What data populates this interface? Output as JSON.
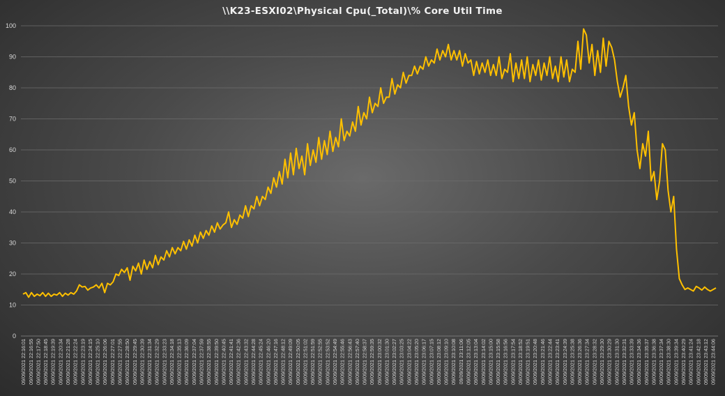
{
  "chart_data": {
    "type": "line",
    "title": "\\\\K23-ESXI02\\Physical Cpu(_Total)\\% Core Util Time",
    "ylim": [
      0,
      100
    ],
    "yticks": [
      0,
      10,
      20,
      30,
      40,
      50,
      60,
      70,
      80,
      90,
      100
    ],
    "grid": true,
    "legend": "none",
    "line_color": "#ffc000",
    "x_tick_labels": [
      "09/09/2021 22:16:01",
      "09/09/2021 22:16:55",
      "09/09/2021 22:17:50",
      "09/09/2021 22:18:45",
      "09/09/2021 22:19:39",
      "09/09/2021 22:20:34",
      "09/09/2021 22:21:28",
      "09/09/2021 22:22:24",
      "09/09/2021 22:23:19",
      "09/09/2021 22:24:15",
      "09/09/2021 22:25:10",
      "09/09/2021 22:26:06",
      "09/09/2021 22:27:01",
      "09/09/2021 22:27:55",
      "09/09/2021 22:28:50",
      "09/09/2021 22:29:45",
      "09/09/2021 22:30:39",
      "09/09/2021 22:31:34",
      "09/09/2021 22:32:29",
      "09/09/2021 22:33:23",
      "09/09/2021 22:34:18",
      "09/09/2021 22:35:13",
      "09/09/2021 22:36:09",
      "09/09/2021 22:37:04",
      "09/09/2021 22:37:59",
      "09/09/2021 22:38:55",
      "09/09/2021 22:39:50",
      "09/09/2021 22:40:45",
      "09/09/2021 22:41:41",
      "09/09/2021 22:42:36",
      "09/09/2021 22:43:32",
      "09/09/2021 22:44:28",
      "09/09/2021 22:45:24",
      "09/09/2021 22:46:20",
      "09/09/2021 22:47:16",
      "09/09/2021 22:48:12",
      "09/09/2021 22:49:09",
      "09/09/2021 22:50:05",
      "09/09/2021 22:51:02",
      "09/09/2021 22:51:59",
      "09/09/2021 22:52:55",
      "09/09/2021 22:53:52",
      "09/09/2021 22:54:49",
      "09/09/2021 22:55:46",
      "09/09/2021 22:56:43",
      "09/09/2021 22:57:40",
      "09/09/2021 22:58:37",
      "09/09/2021 22:59:35",
      "09/09/2021 23:00:32",
      "09/09/2021 23:01:30",
      "09/09/2021 23:02:27",
      "09/09/2021 23:03:25",
      "09/09/2021 23:04:22",
      "09/09/2021 23:05:20",
      "09/09/2021 23:06:17",
      "09/09/2021 23:07:15",
      "09/09/2021 23:08:12",
      "09/09/2021 23:09:10",
      "09/09/2021 23:10:08",
      "09/09/2021 23:11:06",
      "09/09/2021 23:12:05",
      "09/09/2021 23:13:04",
      "09/09/2021 23:14:02",
      "09/09/2021 23:15:00",
      "09/09/2021 23:15:58",
      "09/09/2021 23:16:56",
      "09/09/2021 23:17:54",
      "09/09/2021 23:18:52",
      "09/09/2021 23:19:51",
      "09/09/2021 23:20:48",
      "09/09/2021 23:21:46",
      "09/09/2021 23:22:44",
      "09/09/2021 23:23:41",
      "09/09/2021 23:24:39",
      "09/09/2021 23:25:38",
      "09/09/2021 23:26:36",
      "09/09/2021 23:27:34",
      "09/09/2021 23:28:32",
      "09/09/2021 23:29:30",
      "09/09/2021 23:30:29",
      "09/09/2021 23:31:30",
      "09/09/2021 23:32:31",
      "09/09/2021 23:33:39",
      "09/09/2021 23:34:36",
      "09/09/2021 23:35:37",
      "09/09/2021 23:36:38",
      "09/09/2021 23:37:34",
      "09/09/2021 23:38:30",
      "09/09/2021 23:39:34",
      "09/09/2021 23:40:29",
      "09/09/2021 23:41:24",
      "09/09/2021 23:42:18",
      "09/09/2021 23:43:12",
      "09/09/2021 23:44:06"
    ],
    "series": [
      {
        "values": [
          13.5,
          14,
          12.5,
          14,
          12.8,
          13.5,
          13,
          14,
          12.8,
          13.8,
          12.8,
          13.5,
          13.2,
          14,
          12.8,
          13.8,
          13.2,
          14,
          13.5,
          14.5,
          16.5,
          15.8,
          16,
          14.8,
          15.5,
          15.8,
          16.5,
          15.5,
          17,
          14,
          17,
          16.5,
          17.5,
          20,
          19.5,
          21.5,
          20.5,
          22,
          18,
          22.5,
          21,
          23.5,
          20,
          24.5,
          21.5,
          24,
          22,
          26,
          23,
          25.5,
          24.5,
          27.5,
          25.5,
          28.5,
          26.5,
          28.5,
          27.5,
          30.5,
          28,
          31,
          29,
          32.5,
          30,
          33.5,
          31.5,
          34,
          32.5,
          35.5,
          33.5,
          36.5,
          34.5,
          35.8,
          36.5,
          40,
          35,
          37.5,
          36,
          39,
          38,
          42,
          38.5,
          42,
          41,
          45,
          42,
          45,
          44,
          48,
          46,
          51,
          48,
          53,
          49,
          57,
          51,
          59,
          52,
          60.5,
          54,
          58,
          52,
          62,
          55,
          60,
          56,
          64,
          57,
          63,
          58.5,
          66,
          59.5,
          64,
          61,
          70,
          63,
          66,
          64.5,
          69,
          66,
          74,
          68,
          72,
          70,
          77,
          72,
          75,
          74,
          80,
          75,
          77,
          77,
          83,
          78,
          81,
          80,
          85,
          81.5,
          84,
          84,
          87,
          84.5,
          87,
          86,
          90,
          87,
          89,
          88,
          92.5,
          89,
          92,
          90,
          94,
          89,
          92,
          89,
          92,
          87,
          91,
          88,
          89,
          84,
          88.5,
          84.5,
          88,
          85,
          89,
          84,
          87.5,
          84,
          90,
          83,
          86,
          85,
          91,
          82,
          88,
          83,
          89,
          83,
          90,
          82,
          87.5,
          84,
          89,
          82.5,
          88,
          84,
          90,
          83,
          87,
          82,
          90,
          83.5,
          89,
          82,
          86,
          85,
          95,
          86,
          99,
          97,
          88,
          94,
          84,
          92,
          85,
          96,
          87,
          95,
          93,
          89,
          82,
          77,
          80,
          84,
          74,
          68,
          72,
          60,
          54,
          62,
          58,
          66,
          50,
          53,
          44,
          50,
          62,
          60,
          47,
          40,
          45,
          28,
          18.5,
          16.5,
          15,
          15.5,
          15,
          14.5,
          16,
          15.5,
          14.8,
          15.8,
          15,
          14.5,
          15,
          15.5
        ]
      }
    ]
  }
}
